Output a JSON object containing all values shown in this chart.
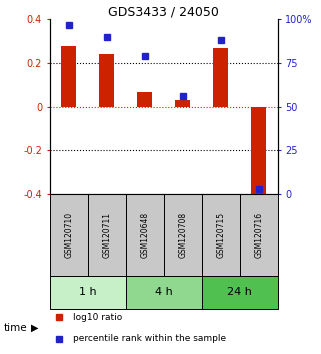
{
  "title": "GDS3433 / 24050",
  "samples": [
    "GSM120710",
    "GSM120711",
    "GSM120648",
    "GSM120708",
    "GSM120715",
    "GSM120716"
  ],
  "log10_ratio": [
    0.28,
    0.24,
    0.07,
    0.03,
    0.27,
    -0.43
  ],
  "percentile_rank": [
    97,
    90,
    79,
    56,
    88,
    3
  ],
  "time_groups": [
    {
      "label": "1 h",
      "start": 0,
      "end": 2,
      "color": "#c8f0c8"
    },
    {
      "label": "4 h",
      "start": 2,
      "end": 4,
      "color": "#90d890"
    },
    {
      "label": "24 h",
      "start": 4,
      "end": 6,
      "color": "#50c050"
    }
  ],
  "bar_color_red": "#cc2200",
  "bar_color_blue": "#2222cc",
  "ylim_left": [
    -0.4,
    0.4
  ],
  "ylim_right": [
    0,
    100
  ],
  "yticks_left": [
    -0.4,
    -0.2,
    0.0,
    0.2,
    0.4
  ],
  "yticks_right": [
    0,
    25,
    50,
    75,
    100
  ],
  "ytick_labels_right": [
    "0",
    "25",
    "50",
    "75",
    "100%"
  ],
  "hline_dashed_black": [
    0.2,
    -0.2
  ],
  "hline_dashed_red": [
    0.0
  ],
  "sample_box_color": "#c8c8c8",
  "time_label": "time",
  "legend_red": "log10 ratio",
  "legend_blue": "percentile rank within the sample",
  "bar_width": 0.4,
  "figsize": [
    3.21,
    3.54
  ],
  "dpi": 100
}
